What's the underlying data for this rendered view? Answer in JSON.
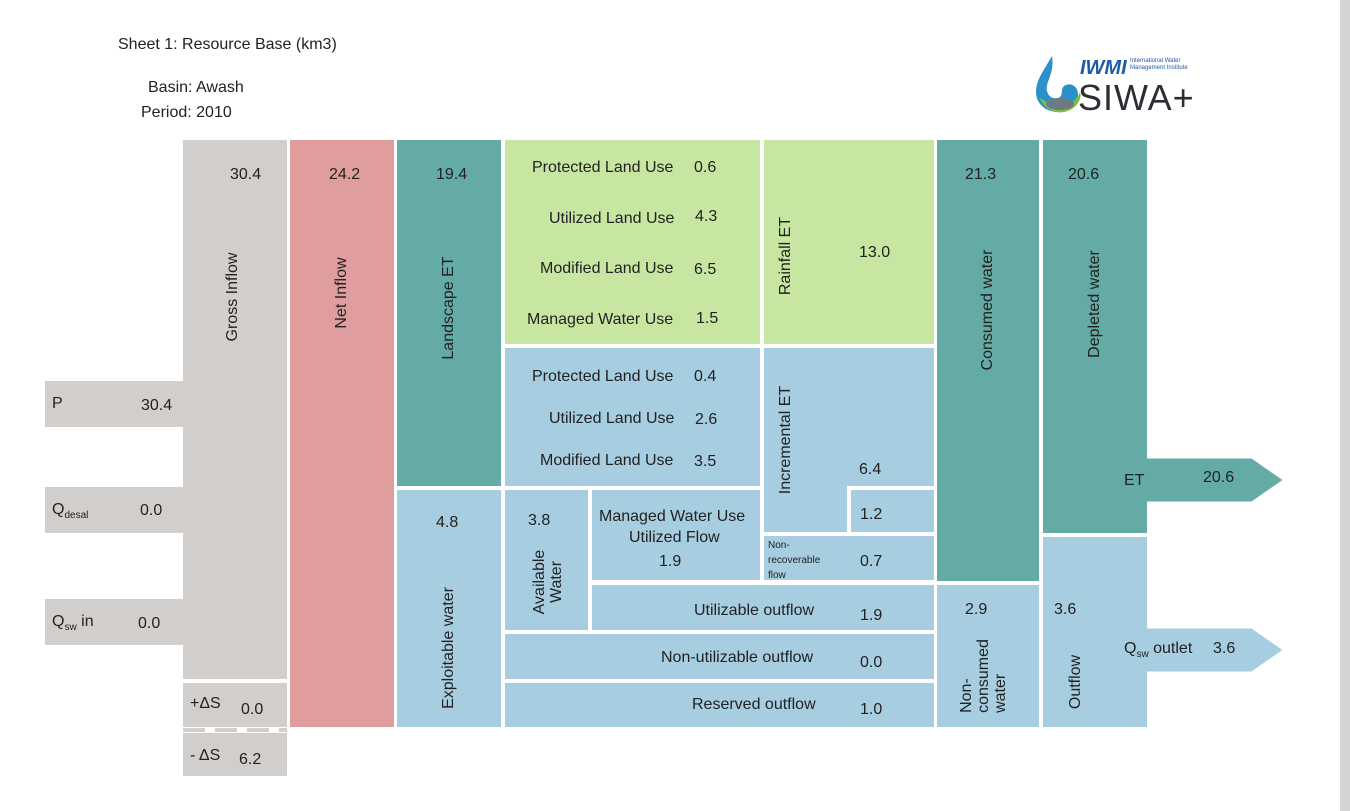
{
  "header": {
    "title": "Sheet 1: Resource Base (km3)",
    "basin": "Basin: Awash",
    "period": "Period: 2010"
  },
  "logo": {
    "brand": "IWMI",
    "tagline_1": "International Water",
    "tagline_2": "Management Institute",
    "product": "SIWA+"
  },
  "inflows": {
    "p": {
      "label": "P",
      "value": "30.4"
    },
    "q_desal": {
      "label": "Q",
      "sub": "desal",
      "value": "0.0"
    },
    "q_sw_in": {
      "label": "Q",
      "sub": "sw",
      "label_suffix": " in",
      "value": "0.0"
    }
  },
  "gross_inflow": {
    "label": "Gross Inflow",
    "value": "30.4"
  },
  "storage": {
    "plus": {
      "label": "+ΔS",
      "value": "0.0"
    },
    "minus": {
      "label": "- ΔS",
      "value": "6.2"
    }
  },
  "net_inflow": {
    "label": "Net Inflow",
    "value": "24.2"
  },
  "landscape_et": {
    "label": "Landscape ET",
    "value": "19.4"
  },
  "rainfall_et": {
    "label": "Rainfall ET",
    "value": "13.0",
    "items": [
      {
        "label": "Protected Land Use",
        "value": "0.6"
      },
      {
        "label": "Utilized Land Use",
        "value": "4.3"
      },
      {
        "label": "Modified Land Use",
        "value": "6.5"
      },
      {
        "label": "Managed Water Use",
        "value": "1.5"
      }
    ]
  },
  "incremental_et": {
    "label": "Incremental ET",
    "value": "6.4",
    "items": [
      {
        "label": "Protected Land Use",
        "value": "0.4"
      },
      {
        "label": "Utilized Land Use",
        "value": "2.6"
      },
      {
        "label": "Modified Land Use",
        "value": "3.5"
      }
    ]
  },
  "exploitable_water": {
    "label": "Exploitable water",
    "value": "4.8"
  },
  "available_water": {
    "label": "Available Water",
    "value": "3.8"
  },
  "managed_utilized": {
    "label_1": "Managed Water Use",
    "label_2": "Utilized Flow",
    "value": "1.9"
  },
  "managed_et_value": "1.2",
  "non_recoverable": {
    "label_1": "Non-",
    "label_2": "recoverable",
    "label_3": "flow",
    "value": "0.7"
  },
  "utilizable_outflow": {
    "label": "Utilizable outflow",
    "value": "1.9"
  },
  "non_utilizable_outflow": {
    "label": "Non-utilizable outflow",
    "value": "0.0"
  },
  "reserved_outflow": {
    "label": "Reserved outflow",
    "value": "1.0"
  },
  "consumed_water": {
    "label": "Consumed water",
    "value": "21.3"
  },
  "depleted_water": {
    "label": "Depleted water",
    "value": "20.6"
  },
  "non_consumed_water": {
    "label": "Non-\nconsumed\nwater",
    "value": "2.9"
  },
  "outflow": {
    "label": "Outflow",
    "value": "3.6"
  },
  "et_out": {
    "label": "ET",
    "value": "20.6"
  },
  "q_sw_outlet": {
    "label": "Q",
    "sub": "sw",
    "label_suffix": " outlet",
    "value": "3.6"
  },
  "colors": {
    "grey": "#d2cecc",
    "red": "#e09d9d",
    "teal": "#63aba4",
    "green": "#c6e6a1",
    "blue": "#a6cde0"
  }
}
